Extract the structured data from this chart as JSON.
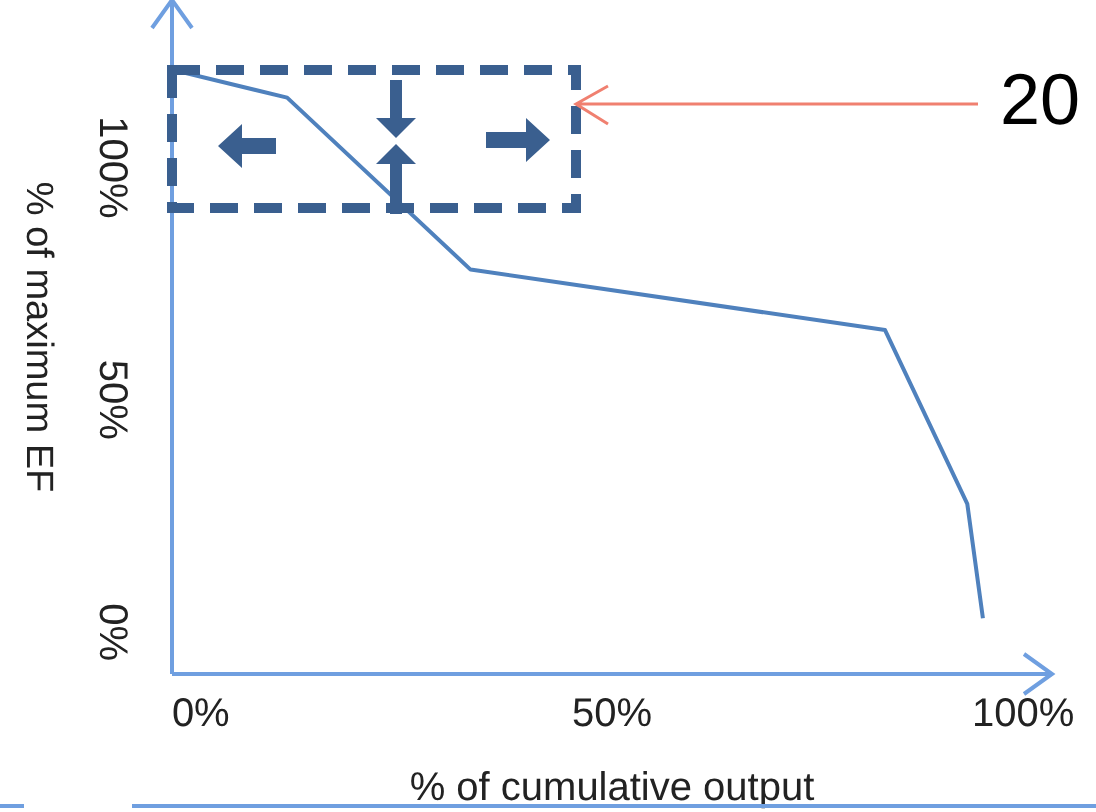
{
  "chart_data": {
    "type": "line",
    "xlabel": "% of cumulative output",
    "ylabel": "% of maximum EF",
    "x": [
      -3.5,
      10.5,
      32.8,
      83.2,
      93.2,
      95.1
    ],
    "series": [
      {
        "color": "#4f81bd",
        "values": [
          121,
          115,
          78,
          65,
          27.6,
          3
        ]
      }
    ],
    "xlim": [
      -3.5,
      103.5
    ],
    "ylim": [
      -9,
      136
    ],
    "xticks": [
      {
        "value": 0,
        "label": "0%"
      },
      {
        "value": 50,
        "label": "50%"
      },
      {
        "value": 100,
        "label": "100%"
      }
    ],
    "yticks": [
      {
        "value": 0,
        "label": "0%"
      },
      {
        "value": 50,
        "label": "50%"
      },
      {
        "value": 100,
        "label": "100%"
      }
    ],
    "grid": false,
    "legend": false,
    "marker": "none",
    "line_style": "solid",
    "annotations": [
      "20"
    ]
  }
}
